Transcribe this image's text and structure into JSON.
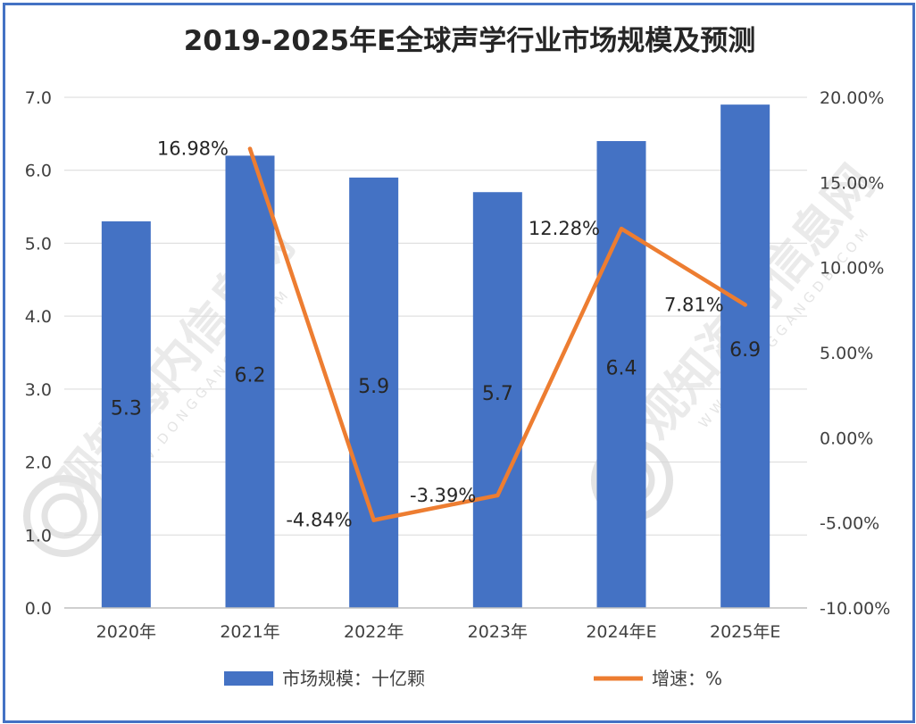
{
  "chart_data": {
    "type": "bar",
    "title": "2019-2025年E全球声学行业市场规模及预测",
    "categories": [
      "2020年",
      "2021年",
      "2022年",
      "2023年",
      "2024年E",
      "2025年E"
    ],
    "series": [
      {
        "name": "市场规模：十亿颗",
        "type": "bar",
        "axis": "left",
        "values": [
          5.3,
          6.2,
          5.9,
          5.7,
          6.4,
          6.9
        ],
        "labels": [
          "5.3",
          "6.2",
          "5.9",
          "5.7",
          "6.4",
          "6.9"
        ],
        "color": "#4472c4"
      },
      {
        "name": "增速：%",
        "type": "line",
        "axis": "right",
        "values": [
          null,
          16.98,
          -4.84,
          -3.39,
          12.28,
          7.81
        ],
        "labels": [
          "",
          "16.98%",
          "-4.84%",
          "-3.39%",
          "12.28%",
          "7.81%"
        ],
        "color": "#ed7d31"
      }
    ],
    "ylim_left": [
      0,
      7
    ],
    "yticks_left": [
      "0.0",
      "1.0",
      "2.0",
      "3.0",
      "4.0",
      "5.0",
      "6.0",
      "7.0"
    ],
    "ylim_right": [
      -10,
      20
    ],
    "yticks_right": [
      "-10.00%",
      "-5.00%",
      "0.00%",
      "5.00%",
      "10.00%",
      "15.00%",
      "20.00%"
    ],
    "grid": true,
    "legend_position": "bottom",
    "watermark": [
      "观知海内信息网",
      "WWW.DONGGANGDB.COM"
    ]
  }
}
